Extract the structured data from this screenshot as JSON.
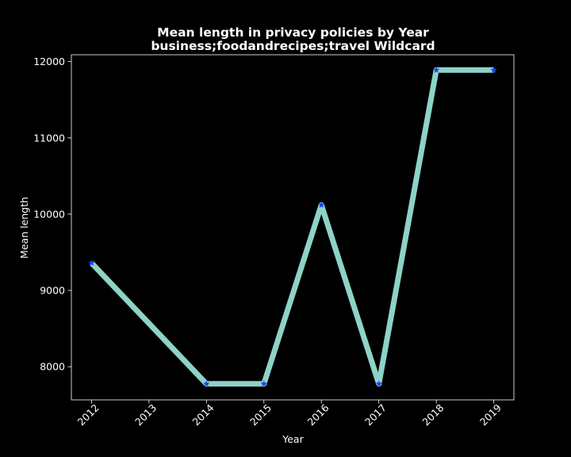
{
  "chart_data": {
    "type": "line",
    "title_lines": [
      "Mean length in privacy policies by Year",
      "business;foodandrecipes;travel Wildcard"
    ],
    "xlabel": "Year",
    "ylabel": "Mean length",
    "x": [
      2012,
      2014,
      2015,
      2016,
      2017,
      2018,
      2019
    ],
    "xticks": [
      "2012",
      "2013",
      "2014",
      "2015",
      "2016",
      "2017",
      "2018",
      "2019"
    ],
    "xlim": [
      2011.65,
      2019.35
    ],
    "ylim": [
      7565,
      12090
    ],
    "yticks": [
      8000,
      9000,
      10000,
      11000,
      12000
    ],
    "series": [
      {
        "name": "Mean length",
        "values": [
          9360,
          7775,
          7775,
          10120,
          7775,
          11890,
          11890
        ],
        "line_color": "#8dd3c7",
        "marker": "star",
        "marker_color": "#1f3dff"
      }
    ],
    "grid": false,
    "background": "#000000",
    "text_color": "#ffffff"
  }
}
